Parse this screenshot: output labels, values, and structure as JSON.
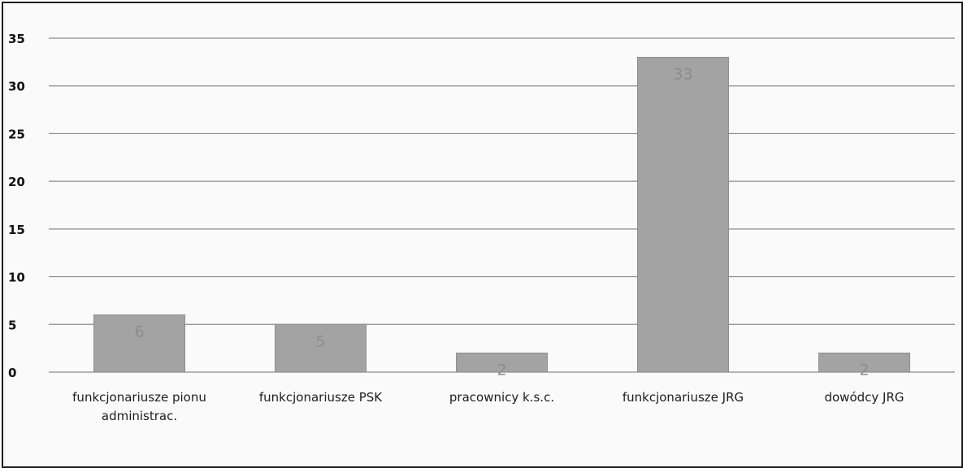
{
  "chart_data": {
    "type": "bar",
    "categories": [
      [
        "funkcjonariusze pionu",
        "administrac."
      ],
      [
        "funkcjonariusze PSK"
      ],
      [
        "pracownicy k.s.c."
      ],
      [
        "funkcjonariusze JRG"
      ],
      [
        "dowódcy JRG"
      ]
    ],
    "values": [
      6,
      5,
      2,
      33,
      2
    ],
    "data_labels": [
      "6",
      "5",
      "2",
      "33",
      "2"
    ],
    "yticks": [
      "0",
      "5",
      "10",
      "15",
      "20",
      "25",
      "30",
      "35"
    ],
    "ylim": [
      0,
      35
    ],
    "grid": true,
    "legend": "none",
    "title": "",
    "xlabel": "",
    "ylabel": "",
    "colors": {
      "bar": "#a3a3a3",
      "bar_edge": "#8e8e8e",
      "grid": "#8a8a8a",
      "label": "#8c8c8c"
    }
  }
}
